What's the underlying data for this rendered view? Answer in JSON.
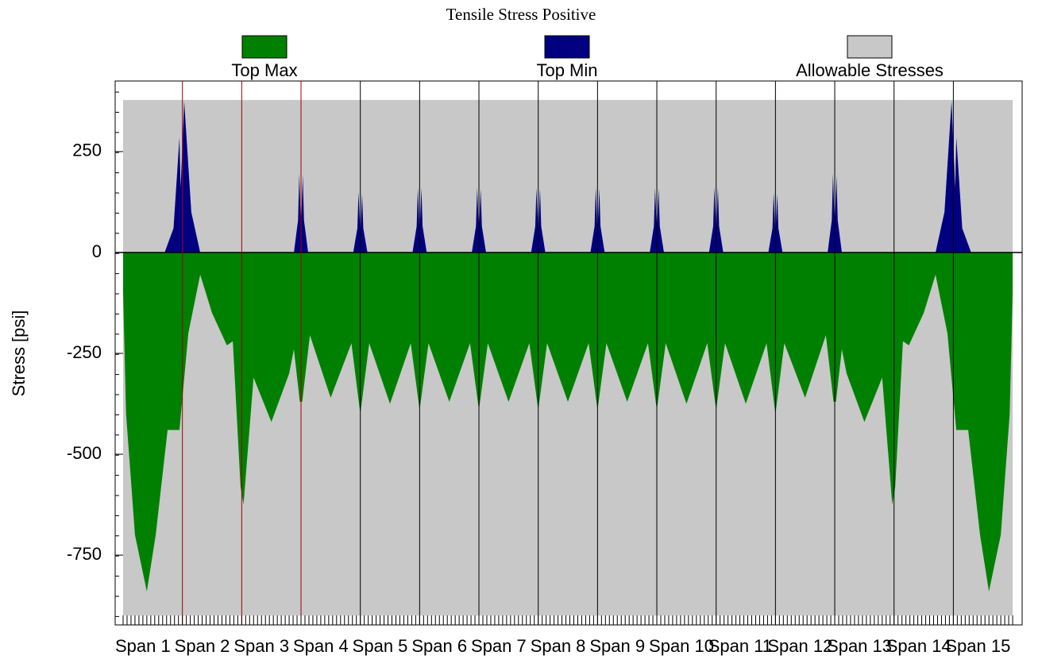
{
  "chart_data": {
    "type": "area",
    "title": "Tensile Stress Positive",
    "ylabel": "Stress [psi]",
    "xlim": [
      -0.134,
      15.16
    ],
    "ylim": [
      -923,
      425
    ],
    "yticks": [
      -750,
      -500,
      -250,
      0,
      250
    ],
    "xticks": [
      {
        "value": 0,
        "label": "Span 1"
      },
      {
        "value": 1,
        "label": "Span 2"
      },
      {
        "value": 2,
        "label": "Span 3"
      },
      {
        "value": 3,
        "label": "Span 4"
      },
      {
        "value": 4,
        "label": "Span 5"
      },
      {
        "value": 5,
        "label": "Span 6"
      },
      {
        "value": 6,
        "label": "Span 7"
      },
      {
        "value": 7,
        "label": "Span 8"
      },
      {
        "value": 8,
        "label": "Span 9"
      },
      {
        "value": 9,
        "label": "Span 10"
      },
      {
        "value": 10,
        "label": "Span 11"
      },
      {
        "value": 11,
        "label": "Span 12"
      },
      {
        "value": 12,
        "label": "Span 13"
      },
      {
        "value": 13,
        "label": "Span 14"
      },
      {
        "value": 14,
        "label": "Span 15"
      }
    ],
    "series": [
      {
        "name": "Top Max",
        "color": "#008000",
        "x": [
          0,
          0.05,
          0.2,
          0.4,
          0.55,
          0.75,
          0.95,
          1.0,
          1.1,
          1.3,
          1.5,
          1.75,
          1.85,
          1.98,
          2.03,
          2.2,
          2.5,
          2.8,
          2.88,
          2.98,
          3.02,
          3.15,
          3.5,
          3.85,
          4.0,
          4.15,
          4.5,
          4.85,
          5.0,
          5.15,
          5.5,
          5.85,
          6.0,
          6.15,
          6.5,
          6.85,
          7.0,
          7.15,
          7.5,
          7.85,
          8.0,
          8.15,
          8.5,
          8.85,
          9.0,
          9.15,
          9.5,
          9.85,
          10.0,
          10.15,
          10.5,
          10.85,
          11.0,
          11.15,
          11.5,
          11.85,
          11.98,
          12.02,
          12.12,
          12.2,
          12.5,
          12.8,
          12.97,
          13.02,
          13.15,
          13.25,
          13.5,
          13.7,
          13.9,
          14.0,
          14.05,
          14.25,
          14.45,
          14.6,
          14.8,
          14.95,
          15
        ],
        "values": [
          -100,
          -400,
          -700,
          -840,
          -700,
          -440,
          -440,
          -360,
          -200,
          -55,
          -150,
          -230,
          -220,
          -580,
          -625,
          -310,
          -420,
          -300,
          -240,
          -370,
          -370,
          -205,
          -360,
          -225,
          -400,
          -225,
          -375,
          -225,
          -390,
          -225,
          -370,
          -225,
          -390,
          -225,
          -370,
          -225,
          -390,
          -225,
          -370,
          -225,
          -390,
          -225,
          -370,
          -225,
          -390,
          -225,
          -375,
          -225,
          -390,
          -225,
          -375,
          -225,
          -400,
          -225,
          -360,
          -205,
          -370,
          -370,
          -240,
          -300,
          -420,
          -310,
          -625,
          -580,
          -220,
          -230,
          -150,
          -55,
          -200,
          -360,
          -440,
          -440,
          -700,
          -840,
          -700,
          -400,
          -100
        ]
      },
      {
        "name": "Top Min",
        "color": "#000080",
        "x": [
          0.7,
          0.85,
          0.95,
          0.97,
          1.03,
          1.15,
          1.3,
          2.88,
          2.95,
          2.97,
          3.0,
          3.03,
          3.05,
          3.12,
          3.88,
          3.95,
          3.97,
          4.0,
          4.03,
          4.05,
          4.12,
          4.88,
          4.95,
          4.97,
          5.0,
          5.03,
          5.05,
          5.12,
          5.88,
          5.95,
          5.97,
          6.0,
          6.03,
          6.05,
          6.12,
          6.88,
          6.95,
          6.97,
          7.0,
          7.03,
          7.05,
          7.12,
          7.88,
          7.95,
          7.97,
          8.0,
          8.03,
          8.05,
          8.12,
          8.88,
          8.95,
          8.97,
          9.0,
          9.03,
          9.05,
          9.12,
          9.88,
          9.95,
          9.97,
          10.0,
          10.03,
          10.05,
          10.12,
          10.88,
          10.95,
          10.97,
          11.0,
          11.03,
          11.05,
          11.12,
          11.88,
          11.95,
          11.97,
          12.0,
          12.03,
          12.05,
          12.12,
          13.7,
          13.85,
          13.97,
          14.03,
          14.05,
          14.15,
          14.3
        ],
        "values": [
          0,
          60,
          285,
          160,
          375,
          100,
          0,
          0,
          80,
          195,
          60,
          192,
          80,
          0,
          0,
          60,
          150,
          45,
          145,
          60,
          0,
          0,
          65,
          160,
          50,
          160,
          65,
          0,
          0,
          65,
          160,
          50,
          158,
          65,
          0,
          0,
          65,
          160,
          50,
          158,
          65,
          0,
          0,
          65,
          160,
          50,
          158,
          65,
          0,
          0,
          65,
          160,
          50,
          158,
          65,
          0,
          0,
          65,
          162,
          50,
          160,
          65,
          0,
          0,
          60,
          148,
          45,
          145,
          60,
          0,
          0,
          80,
          195,
          60,
          190,
          80,
          0,
          0,
          100,
          375,
          160,
          285,
          60,
          0
        ]
      },
      {
        "name": "Allowable Stresses",
        "color": "#c8c8c8",
        "x": [
          0,
          15
        ],
        "values": [
          378,
          378
        ],
        "lower": [
          -900,
          -900
        ]
      }
    ]
  }
}
